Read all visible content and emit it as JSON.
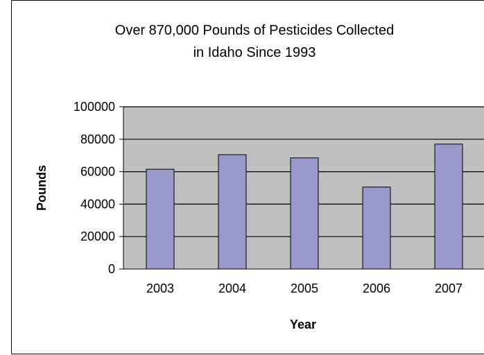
{
  "chart_data": {
    "type": "bar",
    "title": "Over 870,000 Pounds of Pesticides Collected\nin Idaho Since 1993",
    "xlabel": "Year",
    "ylabel": "Pounds",
    "categories": [
      "2003",
      "2004",
      "2005",
      "2006",
      "2007"
    ],
    "values": [
      61500,
      70500,
      68500,
      50500,
      77000
    ],
    "ylim": [
      0,
      100000
    ],
    "yticks": [
      "0",
      "20000",
      "40000",
      "60000",
      "80000",
      "100000"
    ],
    "grid": true,
    "legend": "none",
    "colors": {
      "bar_fill": "#9999cc",
      "plot_background": "#c0c0c0",
      "gridline": "#000000"
    }
  }
}
